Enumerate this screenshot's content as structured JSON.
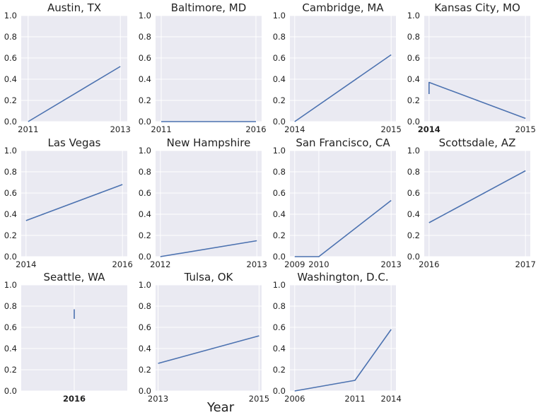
{
  "figure": {
    "xlabel": "Year",
    "colors": {
      "plot_bg": "#EAEAF2",
      "grid": "#ffffff",
      "line": "#4C72B0",
      "text": "#222222"
    }
  },
  "chart_data": [
    {
      "type": "line",
      "title": "Austin, TX",
      "ylim": [
        0,
        1
      ],
      "yticks": [
        "0.0",
        "0.2",
        "0.4",
        "0.6",
        "0.8",
        "1.0"
      ],
      "xticks": [
        {
          "value": 2011,
          "label": "2011"
        },
        {
          "value": 2013,
          "label": "2013"
        }
      ],
      "xlim": [
        2010.85,
        2013.15
      ],
      "series": [
        {
          "x": [
            2011,
            2013
          ],
          "values": [
            0.0,
            0.52
          ]
        }
      ]
    },
    {
      "type": "line",
      "title": "Baltimore, MD",
      "ylim": [
        0,
        1
      ],
      "yticks": [
        "0.0",
        "0.2",
        "0.4",
        "0.6",
        "0.8",
        "1.0"
      ],
      "xticks": [
        {
          "value": 2011,
          "label": "2011"
        },
        {
          "value": 2016,
          "label": "2016"
        }
      ],
      "xlim": [
        2010.7,
        2016.3
      ],
      "series": [
        {
          "x": [
            2011,
            2016
          ],
          "values": [
            0.0,
            0.0
          ]
        }
      ]
    },
    {
      "type": "line",
      "title": "Cambridge, MA",
      "ylim": [
        0,
        1
      ],
      "yticks": [
        "0.0",
        "0.2",
        "0.4",
        "0.6",
        "0.8",
        "1.0"
      ],
      "xticks": [
        {
          "value": 2014,
          "label": "2014"
        },
        {
          "value": 2015,
          "label": "2015"
        }
      ],
      "xlim": [
        2013.95,
        2015.05
      ],
      "series": [
        {
          "x": [
            2014,
            2015
          ],
          "values": [
            0.0,
            0.63
          ]
        }
      ]
    },
    {
      "type": "line",
      "title": "Kansas City, MO",
      "ylim": [
        0,
        1
      ],
      "yticks": [
        "0.0",
        "0.2",
        "0.4",
        "0.6",
        "0.8",
        "1.0"
      ],
      "xticks": [
        {
          "value": 2014,
          "label": "2014",
          "bold": true
        },
        {
          "value": 2015,
          "label": "2015"
        }
      ],
      "xlim": [
        2013.95,
        2015.05
      ],
      "series": [
        {
          "x": [
            2014,
            2014,
            2015
          ],
          "values": [
            0.26,
            0.37,
            0.03
          ]
        }
      ]
    },
    {
      "type": "line",
      "title": "Las Vegas",
      "ylim": [
        0,
        1
      ],
      "yticks": [
        "0.0",
        "0.2",
        "0.4",
        "0.6",
        "0.8",
        "1.0"
      ],
      "xticks": [
        {
          "value": 2014,
          "label": "2014"
        },
        {
          "value": 2016,
          "label": "2016"
        }
      ],
      "xlim": [
        2013.9,
        2016.1
      ],
      "series": [
        {
          "x": [
            2014,
            2016
          ],
          "values": [
            0.34,
            0.68
          ]
        }
      ]
    },
    {
      "type": "line",
      "title": "New Hampshire",
      "ylim": [
        0,
        1
      ],
      "yticks": [
        "0.0",
        "0.2",
        "0.4",
        "0.6",
        "0.8",
        "1.0"
      ],
      "xticks": [
        {
          "value": 2012,
          "label": "2012"
        },
        {
          "value": 2013,
          "label": "2013"
        }
      ],
      "xlim": [
        2011.95,
        2013.05
      ],
      "series": [
        {
          "x": [
            2012,
            2013
          ],
          "values": [
            0.0,
            0.15
          ]
        }
      ]
    },
    {
      "type": "line",
      "title": "San Francisco, CA",
      "ylim": [
        0,
        1
      ],
      "yticks": [
        "0.0",
        "0.2",
        "0.4",
        "0.6",
        "0.8",
        "1.0"
      ],
      "xticks": [
        {
          "value": 2009,
          "label": "2009"
        },
        {
          "value": 2010,
          "label": "2010"
        },
        {
          "value": 2013,
          "label": "2013"
        }
      ],
      "xlim": [
        2008.8,
        2013.2
      ],
      "series": [
        {
          "x": [
            2009,
            2010,
            2013
          ],
          "values": [
            0.0,
            0.0,
            0.53
          ]
        }
      ]
    },
    {
      "type": "line",
      "title": "Scottsdale, AZ",
      "ylim": [
        0,
        1
      ],
      "yticks": [
        "0.0",
        "0.2",
        "0.4",
        "0.6",
        "0.8",
        "1.0"
      ],
      "xticks": [
        {
          "value": 2016,
          "label": "2016"
        },
        {
          "value": 2017,
          "label": "2017"
        }
      ],
      "xlim": [
        2015.95,
        2017.05
      ],
      "series": [
        {
          "x": [
            2016,
            2017
          ],
          "values": [
            0.32,
            0.81
          ]
        }
      ]
    },
    {
      "type": "line",
      "title": "Seattle, WA",
      "ylim": [
        0,
        1
      ],
      "yticks": [
        "0.0",
        "0.2",
        "0.4",
        "0.6",
        "0.8",
        "1.0"
      ],
      "xticks": [
        {
          "value": 2016,
          "label": "2016",
          "bold": true
        }
      ],
      "xlim": [
        2015.45,
        2016.55
      ],
      "series": [
        {
          "x": [
            2016,
            2016
          ],
          "values": [
            0.68,
            0.77
          ]
        }
      ]
    },
    {
      "type": "line",
      "title": "Tulsa, OK",
      "ylim": [
        0,
        1
      ],
      "yticks": [
        "0.0",
        "0.2",
        "0.4",
        "0.6",
        "0.8",
        "1.0"
      ],
      "xticks": [
        {
          "value": 2013,
          "label": "2013"
        },
        {
          "value": 2015,
          "label": "2015"
        }
      ],
      "xlim": [
        2012.95,
        2015.05
      ],
      "series": [
        {
          "x": [
            2013,
            2015
          ],
          "values": [
            0.26,
            0.52
          ]
        }
      ]
    },
    {
      "type": "line",
      "title": "Washington, D.C.",
      "ylim": [
        0,
        1
      ],
      "yticks": [
        "0.0",
        "0.2",
        "0.4",
        "0.6",
        "0.8",
        "1.0"
      ],
      "xticks": [
        {
          "value": 2006,
          "label": "2006"
        },
        {
          "value": 2011,
          "label": "2011"
        },
        {
          "value": 2014,
          "label": "2014"
        }
      ],
      "xlim": [
        2005.6,
        2014.4
      ],
      "series": [
        {
          "x": [
            2006,
            2011,
            2014
          ],
          "values": [
            0.0,
            0.1,
            0.58
          ]
        }
      ]
    }
  ]
}
